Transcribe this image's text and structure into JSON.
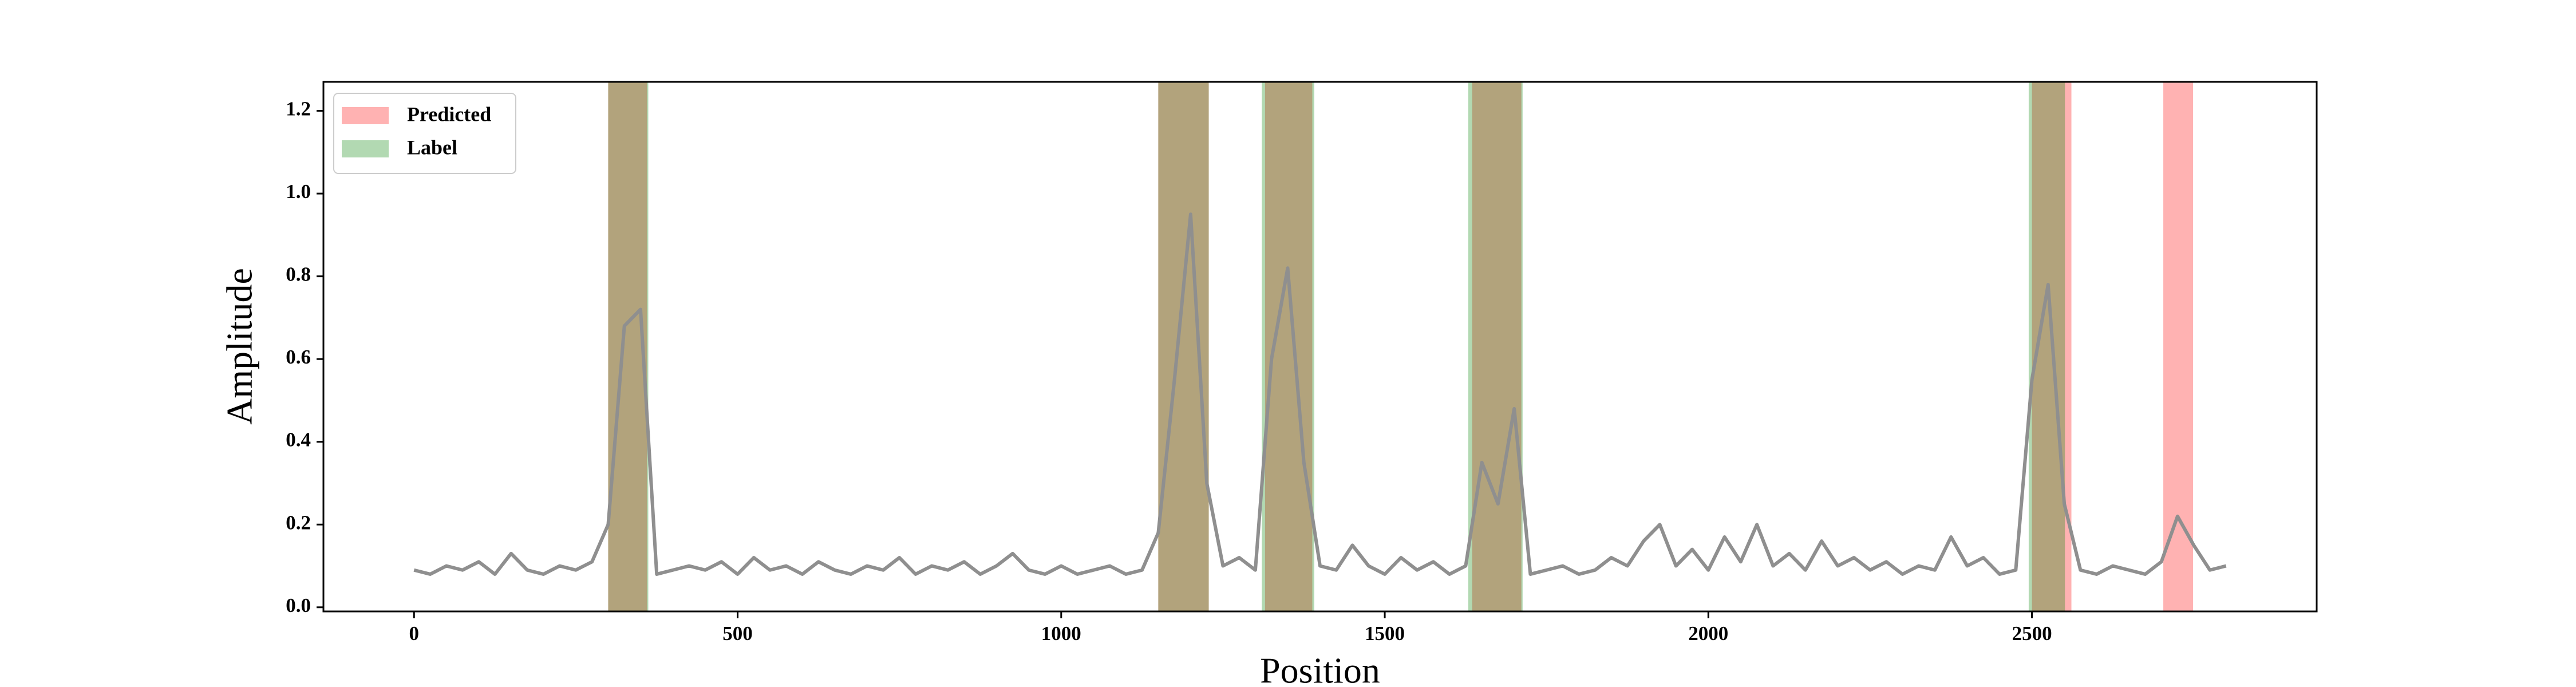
{
  "chart_data": {
    "type": "line",
    "x_label": "Position",
    "y_label": "Amplitude",
    "xlim": [
      -140,
      2940
    ],
    "ylim": [
      -0.01,
      1.27
    ],
    "xticks": [
      0,
      500,
      1000,
      1500,
      2000,
      2500
    ],
    "yticks": [
      {
        "value": 0,
        "label": "0.0"
      },
      0.2,
      0.4,
      0.6,
      0.8,
      {
        "value": 1,
        "label": "1.0"
      },
      1.2
    ],
    "x": [
      0,
      25,
      50,
      75,
      100,
      125,
      150,
      175,
      200,
      225,
      250,
      275,
      300,
      325,
      350,
      375,
      400,
      425,
      450,
      475,
      500,
      525,
      550,
      575,
      600,
      625,
      650,
      675,
      700,
      725,
      750,
      775,
      800,
      825,
      850,
      875,
      900,
      925,
      950,
      975,
      1000,
      1025,
      1050,
      1075,
      1100,
      1125,
      1150,
      1175,
      1200,
      1225,
      1250,
      1275,
      1300,
      1325,
      1350,
      1375,
      1400,
      1425,
      1450,
      1475,
      1500,
      1525,
      1550,
      1575,
      1600,
      1625,
      1650,
      1675,
      1700,
      1725,
      1750,
      1775,
      1800,
      1825,
      1850,
      1875,
      1900,
      1925,
      1950,
      1975,
      2000,
      2025,
      2050,
      2075,
      2100,
      2125,
      2150,
      2175,
      2200,
      2225,
      2250,
      2275,
      2300,
      2325,
      2350,
      2375,
      2400,
      2425,
      2450,
      2475,
      2500,
      2525,
      2550,
      2575,
      2600,
      2625,
      2650,
      2675,
      2700,
      2725,
      2750,
      2775,
      2800
    ],
    "series": [
      {
        "color": "#8f8f8f",
        "values": [
          0.09,
          0.08,
          0.1,
          0.09,
          0.11,
          0.08,
          0.13,
          0.09,
          0.08,
          0.1,
          0.09,
          0.11,
          0.2,
          0.68,
          0.72,
          0.08,
          0.09,
          0.1,
          0.09,
          0.11,
          0.08,
          0.12,
          0.09,
          0.1,
          0.08,
          0.11,
          0.09,
          0.08,
          0.1,
          0.09,
          0.12,
          0.08,
          0.1,
          0.09,
          0.11,
          0.08,
          0.1,
          0.13,
          0.09,
          0.08,
          0.1,
          0.08,
          0.09,
          0.1,
          0.08,
          0.09,
          0.18,
          0.55,
          0.95,
          0.3,
          0.1,
          0.12,
          0.09,
          0.6,
          0.82,
          0.35,
          0.1,
          0.09,
          0.15,
          0.1,
          0.08,
          0.12,
          0.09,
          0.11,
          0.08,
          0.1,
          0.35,
          0.25,
          0.48,
          0.08,
          0.09,
          0.1,
          0.08,
          0.09,
          0.12,
          0.1,
          0.16,
          0.2,
          0.1,
          0.14,
          0.09,
          0.17,
          0.11,
          0.2,
          0.1,
          0.13,
          0.09,
          0.16,
          0.1,
          0.12,
          0.09,
          0.11,
          0.08,
          0.1,
          0.09,
          0.17,
          0.1,
          0.12,
          0.08,
          0.09,
          0.55,
          0.78,
          0.25,
          0.09,
          0.08,
          0.1,
          0.09,
          0.08,
          0.11,
          0.22,
          0.15,
          0.09,
          0.1
        ]
      }
    ],
    "spans": [
      {
        "name": "Predicted",
        "color": "#ff0000",
        "alpha": 0.3,
        "ranges": [
          [
            300,
            360
          ],
          [
            1150,
            1228
          ],
          [
            1315,
            1388
          ],
          [
            1635,
            1711
          ],
          [
            2500,
            2561
          ],
          [
            2703,
            2749
          ]
        ]
      },
      {
        "name": "Label",
        "color": "#008000",
        "alpha": 0.3,
        "ranges": [
          [
            300,
            362
          ],
          [
            1150,
            1228
          ],
          [
            1310,
            1391
          ],
          [
            1629,
            1713
          ],
          [
            2495,
            2551
          ]
        ]
      }
    ],
    "legend": "upper left"
  }
}
